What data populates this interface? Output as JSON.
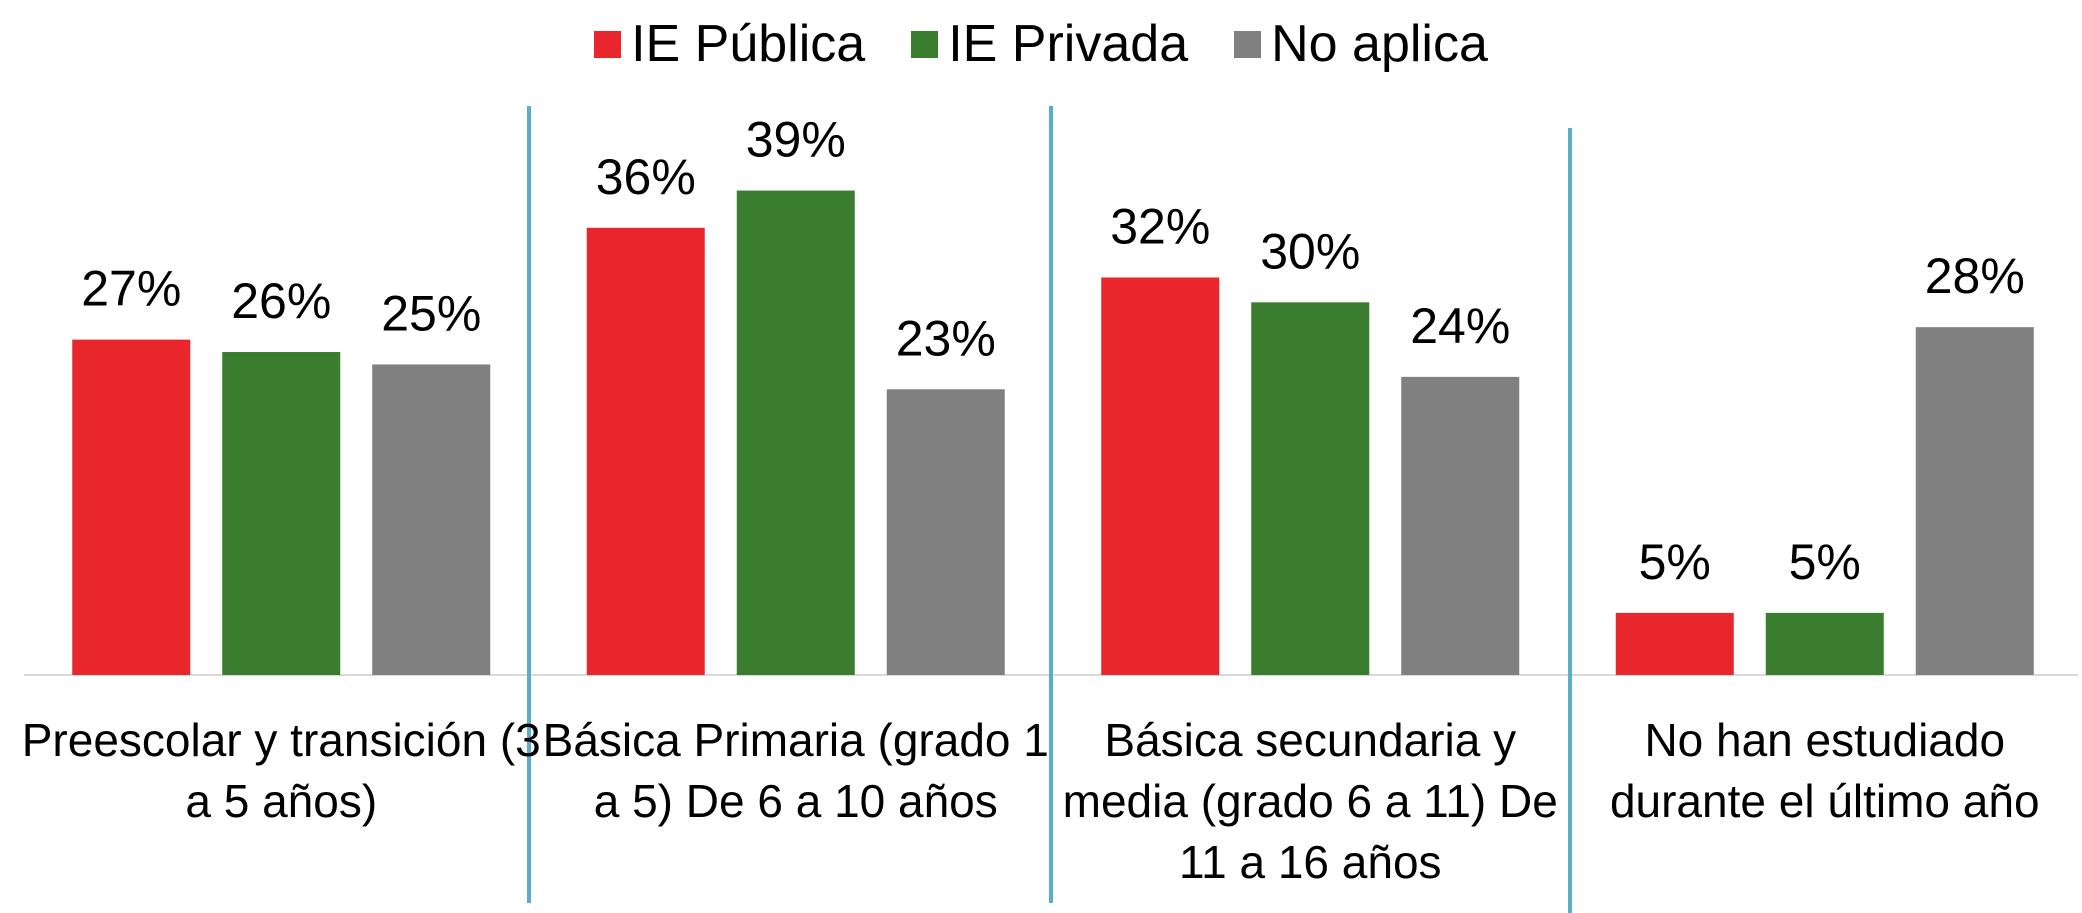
{
  "chart_data": {
    "type": "bar",
    "categories": [
      "Preescolar y transición (3 a 5 años)",
      "Básica Primaria (grado 1 a 5) De 6 a 10 años",
      "Básica secundaria y media (grado 6 a 11) De 11 a 16 años",
      "No han estudiado durante el último año"
    ],
    "series": [
      {
        "name": "IE Pública",
        "color": "#e8262c",
        "values": [
          27,
          36,
          32,
          5
        ],
        "value_labels": [
          "27%",
          "36%",
          "32%",
          "5%"
        ]
      },
      {
        "name": "IE Privada",
        "color": "#3a7d2f",
        "values": [
          26,
          39,
          30,
          5
        ],
        "value_labels": [
          "26%",
          "39%",
          "30%",
          "5%"
        ]
      },
      {
        "name": "No aplica",
        "color": "#808080",
        "values": [
          25,
          23,
          24,
          28
        ],
        "value_labels": [
          "25%",
          "23%",
          "24%",
          "28%"
        ]
      }
    ],
    "ylim": [
      0,
      45
    ],
    "legend": "top"
  }
}
